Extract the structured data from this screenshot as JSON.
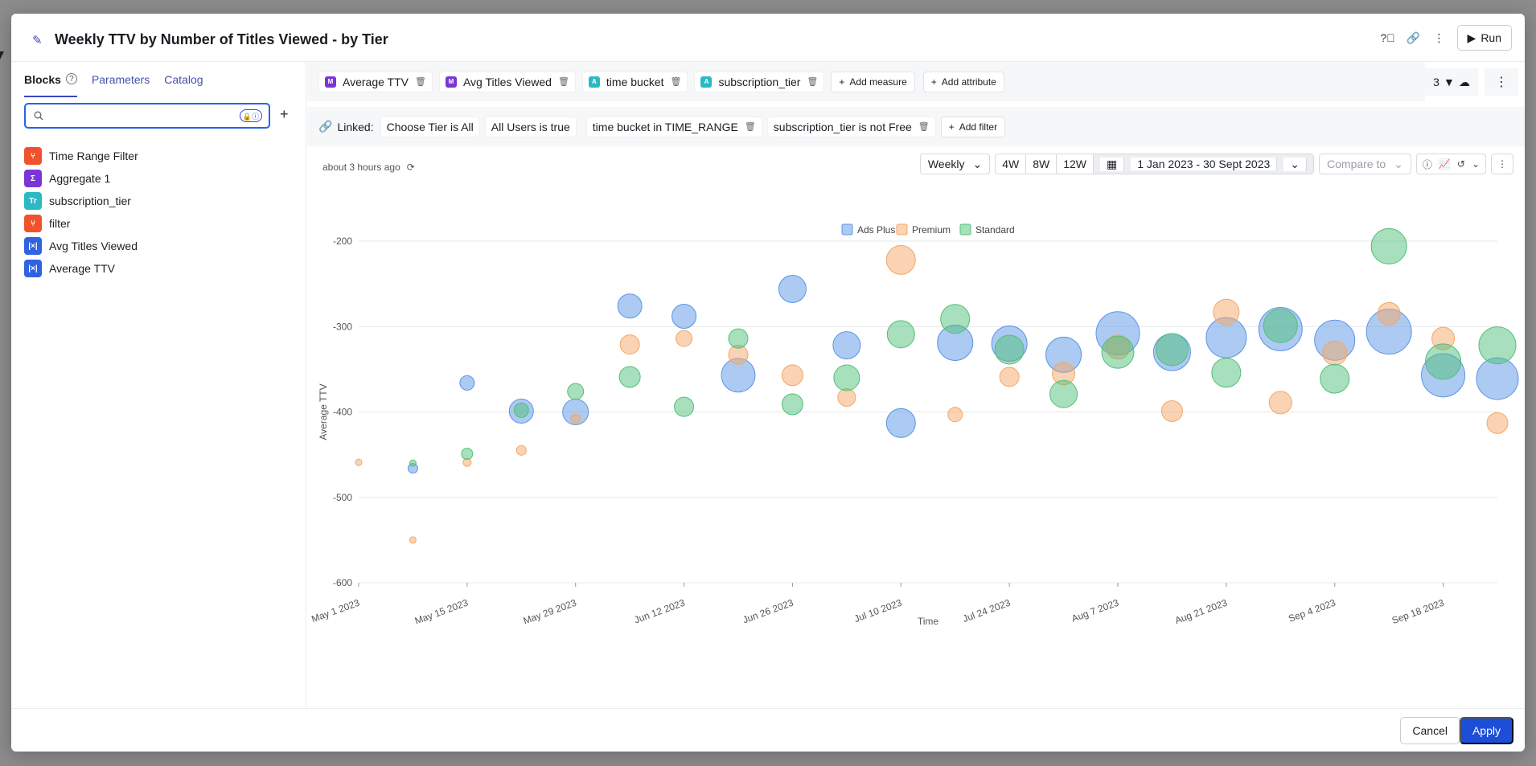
{
  "header": {
    "title": "Weekly TTV by Number of Titles Viewed - by Tier",
    "run_label": "Run"
  },
  "left": {
    "tabs": [
      "Blocks",
      "Parameters",
      "Catalog"
    ],
    "search": {
      "value": "",
      "placeholder": ""
    },
    "blocks": [
      {
        "label": "Time Range Filter",
        "icon": "filter-icon",
        "color": "#f0522d"
      },
      {
        "label": "Aggregate 1",
        "icon": "aggregate-icon",
        "color": "#7b35d6"
      },
      {
        "label": "subscription_tier",
        "icon": "text-icon",
        "color": "#2bb9c4"
      },
      {
        "label": "filter",
        "icon": "filter-icon",
        "color": "#f0522d"
      },
      {
        "label": "Avg Titles Viewed",
        "icon": "metric-icon",
        "color": "#2f63e0"
      },
      {
        "label": "Average TTV",
        "icon": "metric-icon",
        "color": "#2f63e0"
      }
    ]
  },
  "measures": [
    {
      "badge": "M",
      "label": "Average TTV",
      "color": "#7b35d6"
    },
    {
      "badge": "M",
      "label": "Avg Titles Viewed",
      "color": "#7b35d6"
    },
    {
      "badge": "A",
      "label": "time bucket",
      "color": "#2bb9c4"
    },
    {
      "badge": "A",
      "label": "subscription_tier",
      "color": "#2bb9c4"
    }
  ],
  "add_measure": "Add measure",
  "add_attribute": "Add attribute",
  "filter_count": "3",
  "filters": {
    "linked_label": "Linked:",
    "linked": [
      "Choose Tier is All",
      "All Users is true"
    ],
    "items": [
      "time bucket in TIME_RANGE",
      "subscription_tier is not Free"
    ],
    "add_label": "Add filter"
  },
  "toolbar": {
    "updated": "about 3 hours ago",
    "granularity": "Weekly",
    "ranges": [
      "4W",
      "8W",
      "12W"
    ],
    "date_range": "1 Jan 2023 - 30 Sept 2023",
    "compare": "Compare to"
  },
  "footer": {
    "cancel": "Cancel",
    "apply": "Apply"
  },
  "chart_data": {
    "type": "scatter",
    "xlabel": "Time",
    "ylabel": "Average TTV",
    "ylim": [
      -600,
      -200
    ],
    "yticks": [
      -200,
      -300,
      -400,
      -500,
      -600
    ],
    "x_tick_labels": [
      "May 1 2023",
      "May 15 2023",
      "May 29 2023",
      "Jun 12 2023",
      "Jun 26 2023",
      "Jul 10 2023",
      "Jul 24 2023",
      "Aug 7 2023",
      "Aug 21 2023",
      "Sep 4 2023",
      "Sep 18 2023"
    ],
    "x_start": "2023-05-01",
    "x_end": "2023-09-25",
    "legend": [
      "Ads Plus",
      "Premium",
      "Standard"
    ],
    "legend_position": "top-center",
    "colors": {
      "Ads Plus": "#5b95e6",
      "Premium": "#f4a767",
      "Standard": "#52c07a"
    },
    "series": [
      {
        "name": "Ads Plus",
        "points": [
          {
            "x": "2023-05-08",
            "y": -466,
            "size": 0.6
          },
          {
            "x": "2023-05-15",
            "y": -366,
            "size": 0.9
          },
          {
            "x": "2023-05-22",
            "y": -399,
            "size": 1.5
          },
          {
            "x": "2023-05-29",
            "y": -400,
            "size": 1.6
          },
          {
            "x": "2023-06-05",
            "y": -276,
            "size": 1.5
          },
          {
            "x": "2023-06-12",
            "y": -288,
            "size": 1.5
          },
          {
            "x": "2023-06-19",
            "y": -357,
            "size": 2.1
          },
          {
            "x": "2023-06-26",
            "y": -256,
            "size": 1.7
          },
          {
            "x": "2023-07-03",
            "y": -322,
            "size": 1.7
          },
          {
            "x": "2023-07-10",
            "y": -413,
            "size": 1.8
          },
          {
            "x": "2023-07-17",
            "y": -319,
            "size": 2.2
          },
          {
            "x": "2023-07-24",
            "y": -320,
            "size": 2.2
          },
          {
            "x": "2023-07-31",
            "y": -333,
            "size": 2.2
          },
          {
            "x": "2023-08-07",
            "y": -308,
            "size": 2.7
          },
          {
            "x": "2023-08-14",
            "y": -330,
            "size": 2.3
          },
          {
            "x": "2023-08-21",
            "y": -313,
            "size": 2.5
          },
          {
            "x": "2023-08-28",
            "y": -303,
            "size": 2.7
          },
          {
            "x": "2023-09-04",
            "y": -316,
            "size": 2.5
          },
          {
            "x": "2023-09-11",
            "y": -306,
            "size": 2.8
          },
          {
            "x": "2023-09-18",
            "y": -357,
            "size": 2.7
          },
          {
            "x": "2023-09-25",
            "y": -361,
            "size": 2.6
          }
        ]
      },
      {
        "name": "Premium",
        "points": [
          {
            "x": "2023-05-01",
            "y": -459,
            "size": 0.4
          },
          {
            "x": "2023-05-08",
            "y": -550,
            "size": 0.4
          },
          {
            "x": "2023-05-15",
            "y": -459,
            "size": 0.5
          },
          {
            "x": "2023-05-22",
            "y": -445,
            "size": 0.6
          },
          {
            "x": "2023-05-29",
            "y": -408,
            "size": 0.6
          },
          {
            "x": "2023-06-05",
            "y": -321,
            "size": 1.2
          },
          {
            "x": "2023-06-12",
            "y": -314,
            "size": 1.0
          },
          {
            "x": "2023-06-19",
            "y": -333,
            "size": 1.2
          },
          {
            "x": "2023-06-26",
            "y": -357,
            "size": 1.3
          },
          {
            "x": "2023-07-03",
            "y": -383,
            "size": 1.1
          },
          {
            "x": "2023-07-10",
            "y": -222,
            "size": 1.8
          },
          {
            "x": "2023-07-17",
            "y": -403,
            "size": 0.9
          },
          {
            "x": "2023-07-24",
            "y": -359,
            "size": 1.2
          },
          {
            "x": "2023-07-31",
            "y": -355,
            "size": 1.4
          },
          {
            "x": "2023-08-07",
            "y": -324,
            "size": 1.5
          },
          {
            "x": "2023-08-14",
            "y": -399,
            "size": 1.3
          },
          {
            "x": "2023-08-21",
            "y": -283,
            "size": 1.6
          },
          {
            "x": "2023-08-28",
            "y": -389,
            "size": 1.4
          },
          {
            "x": "2023-09-04",
            "y": -331,
            "size": 1.5
          },
          {
            "x": "2023-09-11",
            "y": -285,
            "size": 1.4
          },
          {
            "x": "2023-09-18",
            "y": -314,
            "size": 1.4
          },
          {
            "x": "2023-09-25",
            "y": -413,
            "size": 1.3
          }
        ]
      },
      {
        "name": "Standard",
        "points": [
          {
            "x": "2023-05-08",
            "y": -460,
            "size": 0.4
          },
          {
            "x": "2023-05-15",
            "y": -449,
            "size": 0.7
          },
          {
            "x": "2023-05-22",
            "y": -398,
            "size": 0.9
          },
          {
            "x": "2023-05-29",
            "y": -376,
            "size": 1.0
          },
          {
            "x": "2023-06-05",
            "y": -359,
            "size": 1.3
          },
          {
            "x": "2023-06-12",
            "y": -394,
            "size": 1.2
          },
          {
            "x": "2023-06-19",
            "y": -314,
            "size": 1.2
          },
          {
            "x": "2023-06-26",
            "y": -391,
            "size": 1.3
          },
          {
            "x": "2023-07-03",
            "y": -360,
            "size": 1.6
          },
          {
            "x": "2023-07-10",
            "y": -309,
            "size": 1.7
          },
          {
            "x": "2023-07-17",
            "y": -291,
            "size": 1.8
          },
          {
            "x": "2023-07-24",
            "y": -327,
            "size": 1.8
          },
          {
            "x": "2023-07-31",
            "y": -379,
            "size": 1.7
          },
          {
            "x": "2023-08-07",
            "y": -330,
            "size": 2.0
          },
          {
            "x": "2023-08-14",
            "y": -327,
            "size": 2.0
          },
          {
            "x": "2023-08-21",
            "y": -354,
            "size": 1.8
          },
          {
            "x": "2023-08-28",
            "y": -299,
            "size": 2.1
          },
          {
            "x": "2023-09-04",
            "y": -361,
            "size": 1.8
          },
          {
            "x": "2023-09-11",
            "y": -206,
            "size": 2.2
          },
          {
            "x": "2023-09-18",
            "y": -341,
            "size": 2.2
          },
          {
            "x": "2023-09-25",
            "y": -322,
            "size": 2.3
          }
        ]
      }
    ]
  }
}
